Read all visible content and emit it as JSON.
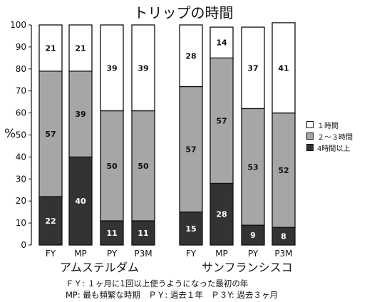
{
  "chart_data": {
    "type": "bar",
    "stacked": true,
    "title": "トリップの時間",
    "ylabel": "%",
    "ylim": [
      0,
      100
    ],
    "yticks": [
      0,
      10,
      20,
      30,
      40,
      50,
      60,
      70,
      80,
      90,
      100
    ],
    "groups": [
      {
        "name": "アムステルダム",
        "categories": [
          "FY",
          "MP",
          "PY",
          "P3M"
        ]
      },
      {
        "name": "サンフランシスコ",
        "categories": [
          "FY",
          "MP",
          "PY",
          "P3M"
        ]
      }
    ],
    "categories": [
      "FY",
      "MP",
      "PY",
      "P3M",
      "FY",
      "MP",
      "PY",
      "P3M"
    ],
    "series": [
      {
        "name": "4時間以上",
        "color": "#333333",
        "values": [
          22,
          40,
          11,
          11,
          15,
          28,
          9,
          8
        ]
      },
      {
        "name": "２～３時間",
        "color": "#a6a6a6",
        "values": [
          57,
          39,
          50,
          50,
          57,
          57,
          53,
          52
        ]
      },
      {
        "name": "１時間",
        "color": "#ffffff",
        "values": [
          21,
          21,
          39,
          39,
          28,
          14,
          37,
          41
        ]
      }
    ],
    "legend_placement": "right",
    "grid": false
  },
  "notes": [
    "ＦＹ: １ヶ月に1回以上使うようになった最初の年",
    "MP: 最も頻繁な時期　ＰＹ: 過去１年　Ｐ３Y: 過去３ヶ月"
  ]
}
